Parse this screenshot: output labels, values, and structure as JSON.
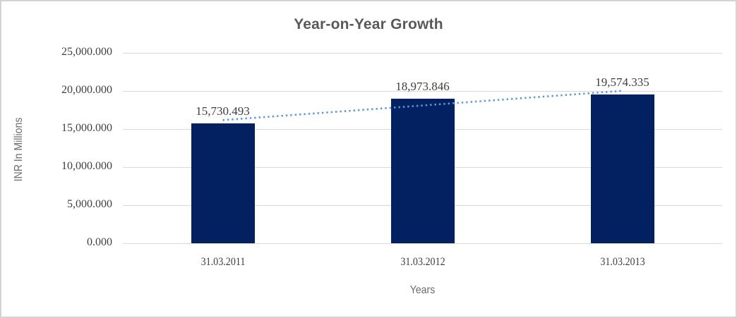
{
  "window": {
    "background": "#ffffff",
    "border_color": "#d3d3d3"
  },
  "chart_data": {
    "type": "bar",
    "title": "Year-on-Year Growth",
    "categories": [
      "31.03.2011",
      "31.03.2012",
      "31.03.2013"
    ],
    "values": [
      15730.493,
      18973.846,
      19574.335
    ],
    "data_labels": [
      "15,730.493",
      "18,973.846",
      "19,574.335"
    ],
    "xlabel": "Years",
    "ylabel": "INR In Millions",
    "ylim": [
      0,
      25000
    ],
    "yticks": [
      0,
      5000,
      10000,
      15000,
      20000,
      25000
    ],
    "ytick_labels": [
      "0.000",
      "5,000.000",
      "10,000.000",
      "15,000.000",
      "20,000.000",
      "25,000.000"
    ],
    "grid": true,
    "legend": "none",
    "trendline": {
      "type": "linear",
      "style": "dotted"
    },
    "colors": {
      "bar": "#032160",
      "trendline": "#5b9bd5",
      "gridline": "#d9d9d9",
      "axis_line": "#d9d9d9",
      "title": "#595959",
      "tick_label": "#3f3f3f",
      "data_label": "#3f3f3f",
      "axis_title": "#6b6b6b"
    }
  }
}
